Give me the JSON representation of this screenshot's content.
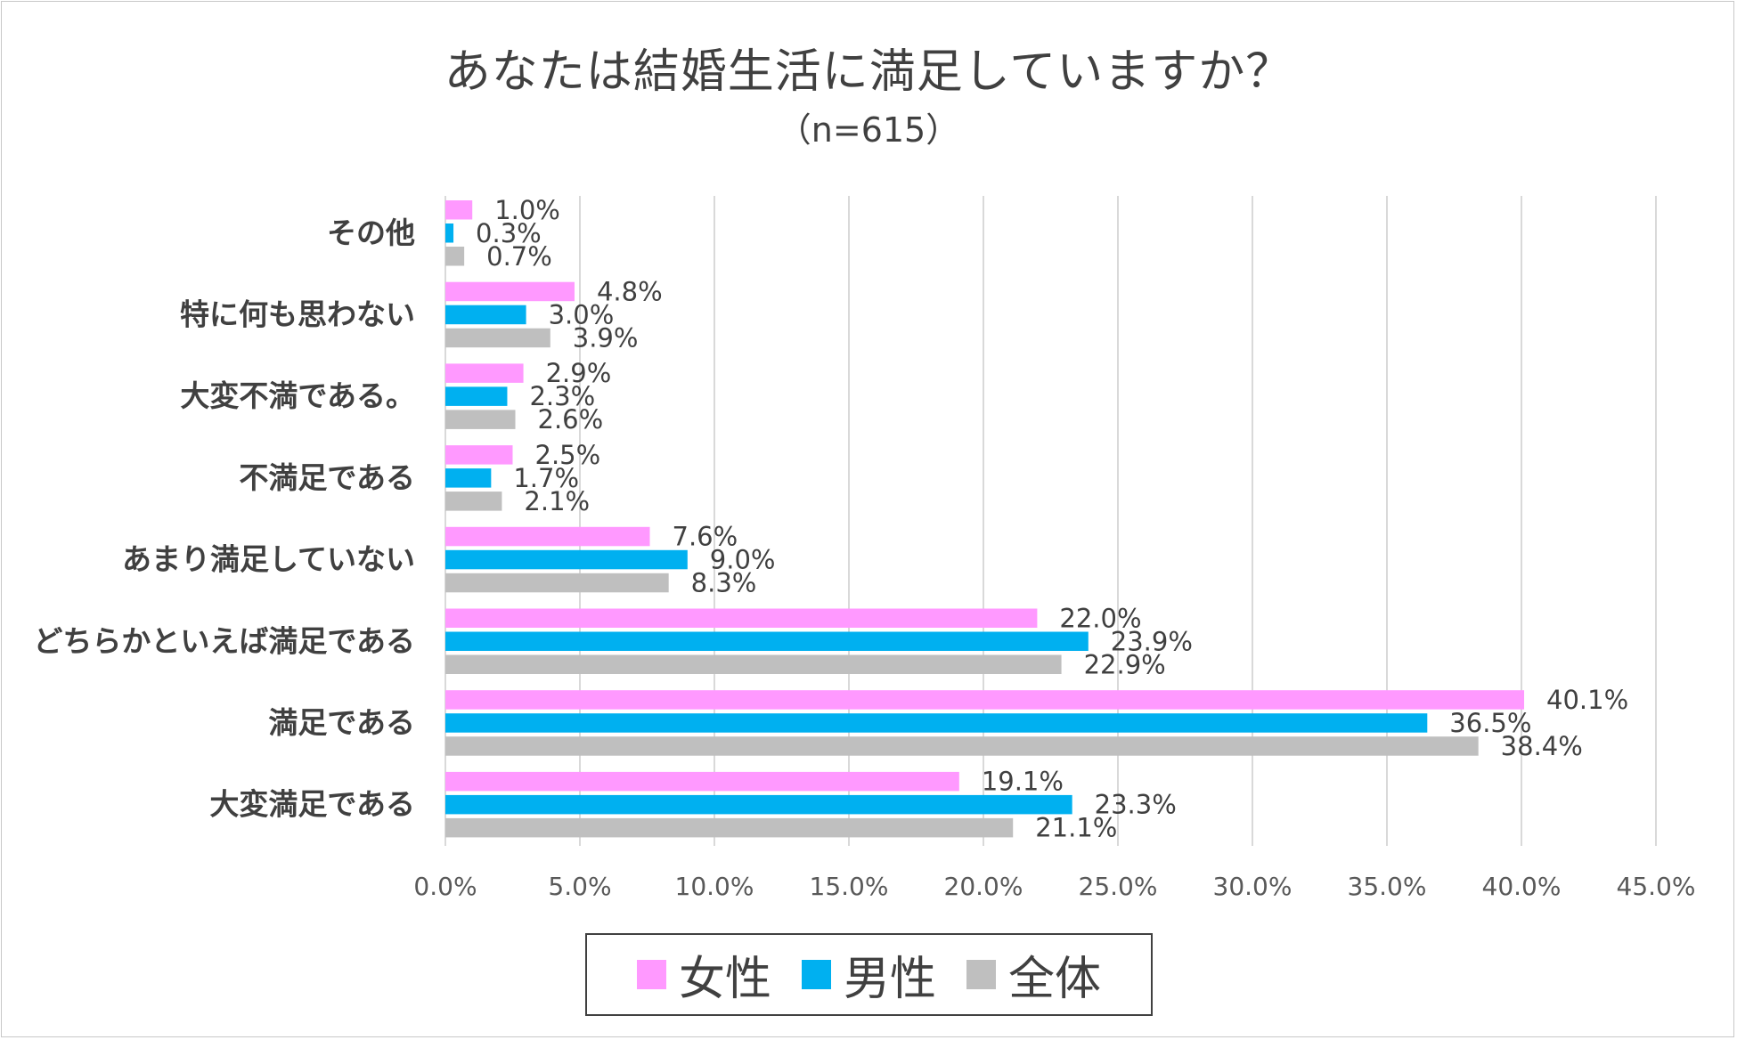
{
  "chart_data": {
    "type": "bar",
    "orientation": "horizontal",
    "title": "あなたは結婚生活に満足していますか？",
    "subtitle": "（n=615）",
    "categories": [
      "その他",
      "特に何も思わない",
      "大変不満である。",
      "不満足である",
      "あまり満足していない",
      "どちらかといえば満足である",
      "満足である",
      "大変満足である"
    ],
    "series": [
      {
        "name": "女性",
        "color": "#FF99FF",
        "values": [
          1.0,
          4.8,
          2.9,
          2.5,
          7.6,
          22.0,
          40.1,
          19.1
        ],
        "labels": [
          "1.0%",
          "4.8%",
          "2.9%",
          "2.5%",
          "7.6%",
          "22.0%",
          "40.1%",
          "19.1%"
        ]
      },
      {
        "name": "男性",
        "color": "#00B0F0",
        "values": [
          0.3,
          3.0,
          2.3,
          1.7,
          9.0,
          23.9,
          36.5,
          23.3
        ],
        "labels": [
          "0.3%",
          "3.0%",
          "2.3%",
          "1.7%",
          "9.0%",
          "23.9%",
          "36.5%",
          "23.3%"
        ]
      },
      {
        "name": "全体",
        "color": "#BFBFBF",
        "values": [
          0.7,
          3.9,
          2.6,
          2.1,
          8.3,
          22.9,
          38.4,
          21.1
        ],
        "labels": [
          "0.7%",
          "3.9%",
          "2.6%",
          "2.1%",
          "8.3%",
          "22.9%",
          "38.4%",
          "21.1%"
        ]
      }
    ],
    "xlim": [
      0,
      45
    ],
    "xticks": [
      "0.0%",
      "5.0%",
      "10.0%",
      "15.0%",
      "20.0%",
      "25.0%",
      "30.0%",
      "35.0%",
      "40.0%",
      "45.0%"
    ],
    "grid": true,
    "legend_position": "bottom"
  }
}
